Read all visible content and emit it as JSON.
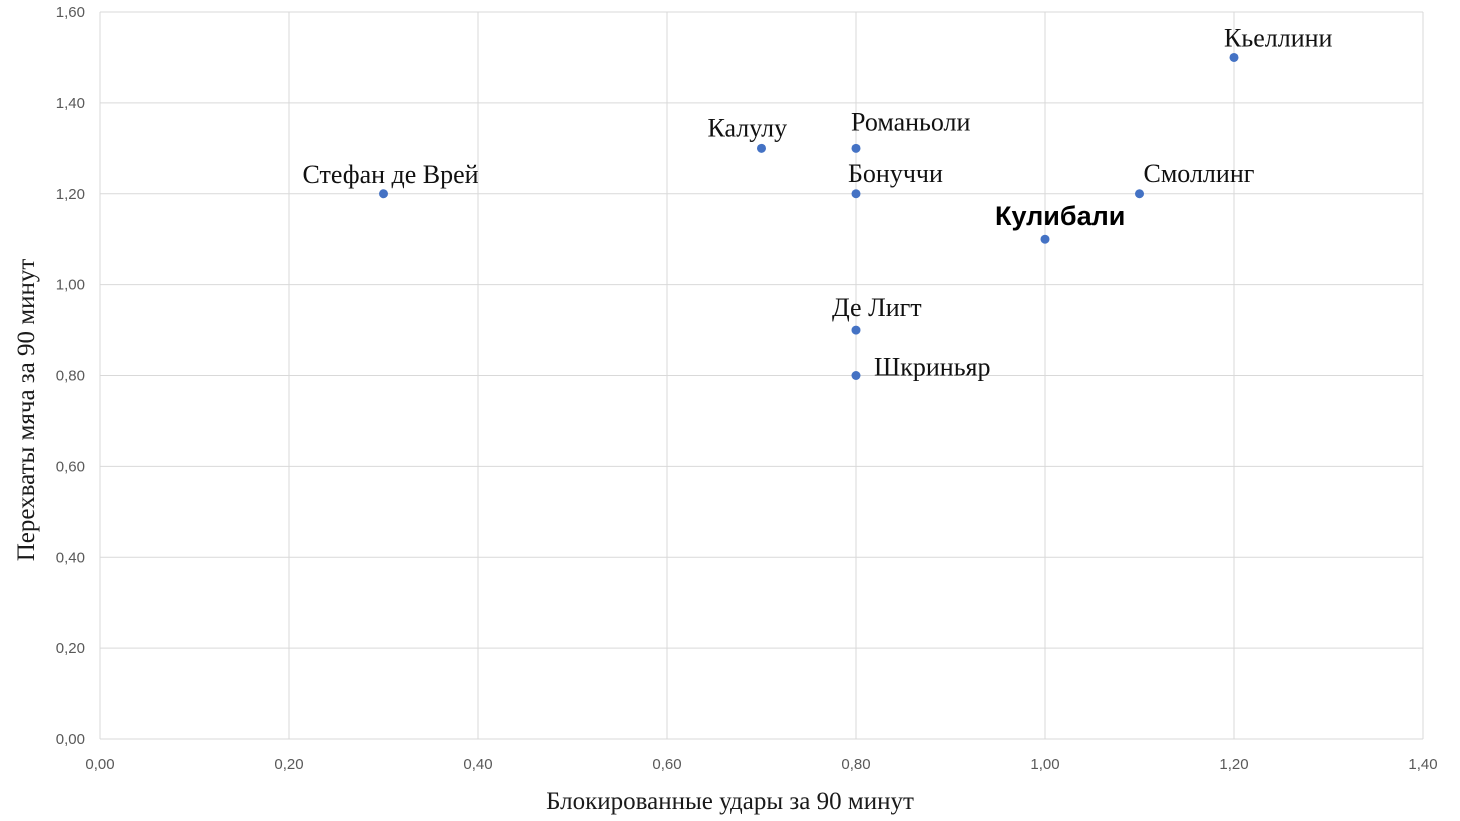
{
  "chart_data": {
    "type": "scatter",
    "title": "",
    "xlabel": "Блокированные удары за 90 минут",
    "ylabel": "Перехваты мяча за 90 минут",
    "xlim": [
      0,
      1.4
    ],
    "ylim": [
      0,
      1.6
    ],
    "xticks": [
      "0,00",
      "0,20",
      "0,40",
      "0,60",
      "0,80",
      "1,00",
      "1,20",
      "1,40"
    ],
    "yticks": [
      "0,00",
      "0,20",
      "0,40",
      "0,60",
      "0,80",
      "1,00",
      "1,20",
      "1,40",
      "1,60"
    ],
    "grid": true,
    "marker_color": "#4472c4",
    "points": [
      {
        "label": "Стефан де Врей",
        "x": 0.3,
        "y": 1.2,
        "bold": false
      },
      {
        "label": "Калулу",
        "x": 0.7,
        "y": 1.3,
        "bold": false
      },
      {
        "label": "Романьоли",
        "x": 0.8,
        "y": 1.3,
        "bold": false
      },
      {
        "label": "Бонуччи",
        "x": 0.8,
        "y": 1.2,
        "bold": false
      },
      {
        "label": "Де Лигт",
        "x": 0.8,
        "y": 0.9,
        "bold": false
      },
      {
        "label": "Шкриньяр",
        "x": 0.8,
        "y": 0.8,
        "bold": false
      },
      {
        "label": "Кулибали",
        "x": 1.0,
        "y": 1.1,
        "bold": true
      },
      {
        "label": "Смоллинг",
        "x": 1.1,
        "y": 1.2,
        "bold": false
      },
      {
        "label": "Кьеллини",
        "x": 1.2,
        "y": 1.5,
        "bold": false
      }
    ]
  }
}
